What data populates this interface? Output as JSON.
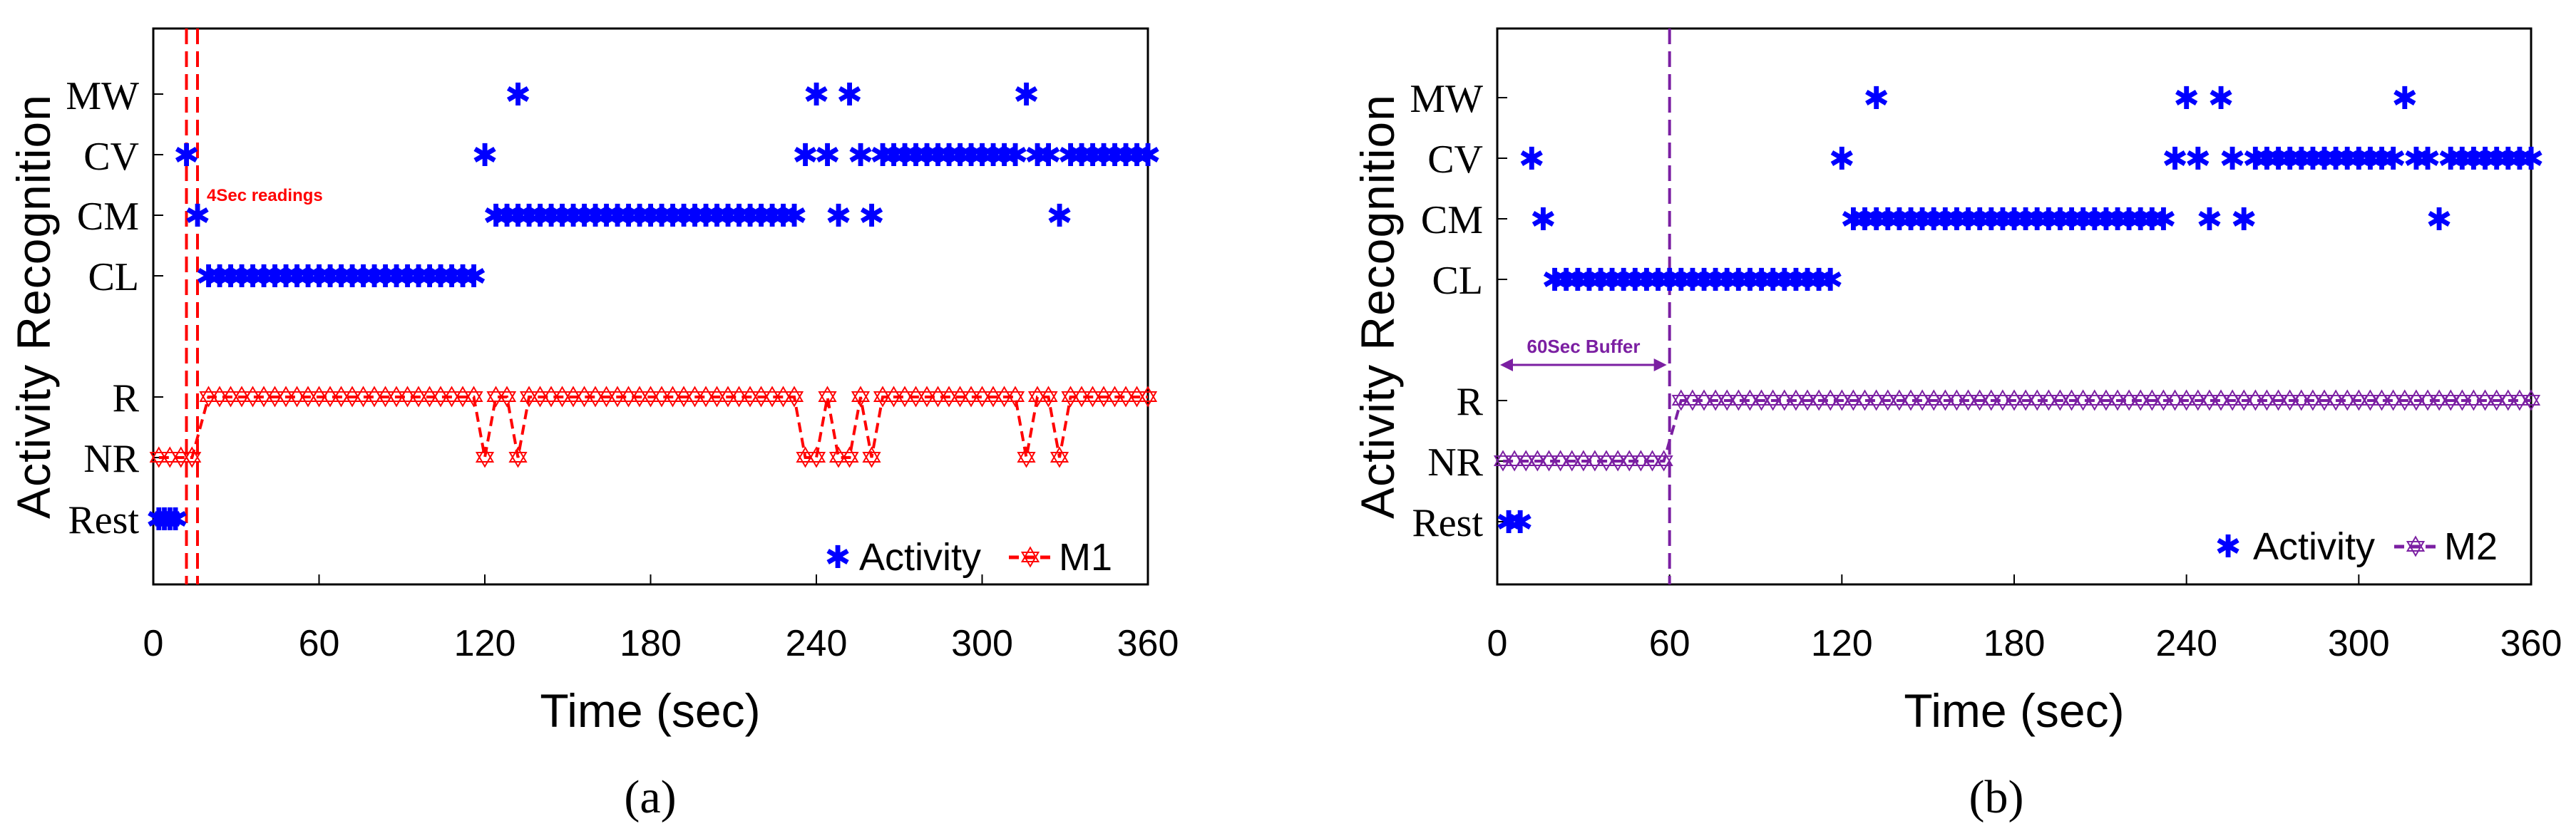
{
  "chart_data": [
    {
      "type": "scatter",
      "panel_label": "(a)",
      "title": "",
      "xlabel": "Time (sec)",
      "ylabel": "Activity Recognition",
      "xlim": [
        0,
        360
      ],
      "xticks": [
        0,
        60,
        120,
        180,
        240,
        300,
        360
      ],
      "ylevels": [
        "Rest",
        "NR",
        "R",
        "",
        "CL",
        "CM",
        "CV",
        "MW"
      ],
      "legend": {
        "position": "bottom-right",
        "entries": [
          "Activity",
          "M1"
        ]
      },
      "colors": {
        "activity": "#0000ff",
        "model": "#ff0000"
      },
      "annotation": "4Sec readings",
      "vlines_x": [
        12,
        16
      ],
      "activity_points": [
        {
          "x": 2,
          "level": "Rest"
        },
        {
          "x": 4,
          "level": "Rest"
        },
        {
          "x": 6,
          "level": "Rest"
        },
        {
          "x": 8,
          "level": "Rest"
        },
        {
          "x": 12,
          "level": "CV"
        },
        {
          "x": 16,
          "level": "CM"
        },
        {
          "x": 20,
          "to": 116,
          "step": 4,
          "level": "CL"
        },
        {
          "x": 120,
          "level": "CV"
        },
        {
          "x": 124,
          "to": 232,
          "step": 4,
          "level": "CM"
        },
        {
          "x": 132,
          "level": "MW"
        },
        {
          "x": 236,
          "level": "CV"
        },
        {
          "x": 240,
          "level": "MW"
        },
        {
          "x": 244,
          "level": "CV"
        },
        {
          "x": 248,
          "level": "CM"
        },
        {
          "x": 252,
          "level": "MW"
        },
        {
          "x": 256,
          "level": "CV"
        },
        {
          "x": 260,
          "level": "CM"
        },
        {
          "x": 264,
          "to": 312,
          "step": 4,
          "level": "CV"
        },
        {
          "x": 316,
          "level": "MW"
        },
        {
          "x": 320,
          "level": "CV"
        },
        {
          "x": 324,
          "level": "CV"
        },
        {
          "x": 328,
          "level": "CM"
        },
        {
          "x": 332,
          "to": 360,
          "step": 4,
          "level": "CV"
        }
      ],
      "model_points": [
        {
          "x": 2,
          "to": 16,
          "step": 4,
          "level": "NR"
        },
        {
          "x": 20,
          "to": 116,
          "step": 4,
          "level": "R"
        },
        {
          "x": 120,
          "level": "NR"
        },
        {
          "x": 124,
          "to": 128,
          "step": 4,
          "level": "R"
        },
        {
          "x": 132,
          "level": "NR"
        },
        {
          "x": 136,
          "to": 232,
          "step": 4,
          "level": "R"
        },
        {
          "x": 236,
          "level": "NR"
        },
        {
          "x": 240,
          "level": "NR"
        },
        {
          "x": 244,
          "level": "R"
        },
        {
          "x": 248,
          "level": "NR"
        },
        {
          "x": 252,
          "level": "NR"
        },
        {
          "x": 256,
          "level": "R"
        },
        {
          "x": 260,
          "level": "NR"
        },
        {
          "x": 264,
          "to": 312,
          "step": 4,
          "level": "R"
        },
        {
          "x": 316,
          "level": "NR"
        },
        {
          "x": 320,
          "level": "R"
        },
        {
          "x": 324,
          "level": "R"
        },
        {
          "x": 328,
          "level": "NR"
        },
        {
          "x": 332,
          "to": 360,
          "step": 4,
          "level": "R"
        }
      ]
    },
    {
      "type": "scatter",
      "panel_label": "(b)",
      "title": "",
      "xlabel": "Time (sec)",
      "ylabel": "Activity Recognition",
      "xlim": [
        0,
        360
      ],
      "xticks": [
        0,
        60,
        120,
        180,
        240,
        300,
        360
      ],
      "ylevels": [
        "Rest",
        "NR",
        "R",
        "",
        "CL",
        "CM",
        "CV",
        "MW"
      ],
      "legend": {
        "position": "bottom-right",
        "entries": [
          "Activity",
          "M2"
        ]
      },
      "colors": {
        "activity": "#0000ff",
        "model": "#7b1fa2"
      },
      "annotation": "60Sec Buffer",
      "vlines_x": [
        60
      ],
      "buffer_arrow": [
        0,
        60
      ],
      "activity_points": [
        {
          "x": 4,
          "level": "Rest"
        },
        {
          "x": 8,
          "level": "Rest"
        },
        {
          "x": 12,
          "level": "CV"
        },
        {
          "x": 16,
          "level": "CM"
        },
        {
          "x": 20,
          "to": 116,
          "step": 4,
          "level": "CL"
        },
        {
          "x": 120,
          "level": "CV"
        },
        {
          "x": 124,
          "to": 232,
          "step": 4,
          "level": "CM"
        },
        {
          "x": 132,
          "level": "MW"
        },
        {
          "x": 236,
          "level": "CV"
        },
        {
          "x": 240,
          "level": "MW"
        },
        {
          "x": 244,
          "level": "CV"
        },
        {
          "x": 248,
          "level": "CM"
        },
        {
          "x": 252,
          "level": "MW"
        },
        {
          "x": 256,
          "level": "CV"
        },
        {
          "x": 260,
          "level": "CM"
        },
        {
          "x": 264,
          "to": 312,
          "step": 4,
          "level": "CV"
        },
        {
          "x": 316,
          "level": "MW"
        },
        {
          "x": 320,
          "level": "CV"
        },
        {
          "x": 324,
          "level": "CV"
        },
        {
          "x": 328,
          "level": "CM"
        },
        {
          "x": 332,
          "to": 360,
          "step": 4,
          "level": "CV"
        }
      ],
      "model_points": [
        {
          "x": 2,
          "to": 58,
          "step": 4,
          "level": "NR"
        },
        {
          "x": 64,
          "to": 360,
          "step": 4,
          "level": "R"
        }
      ]
    }
  ],
  "glyphs": {
    "activity_marker": "✱",
    "model_marker": "✡"
  }
}
